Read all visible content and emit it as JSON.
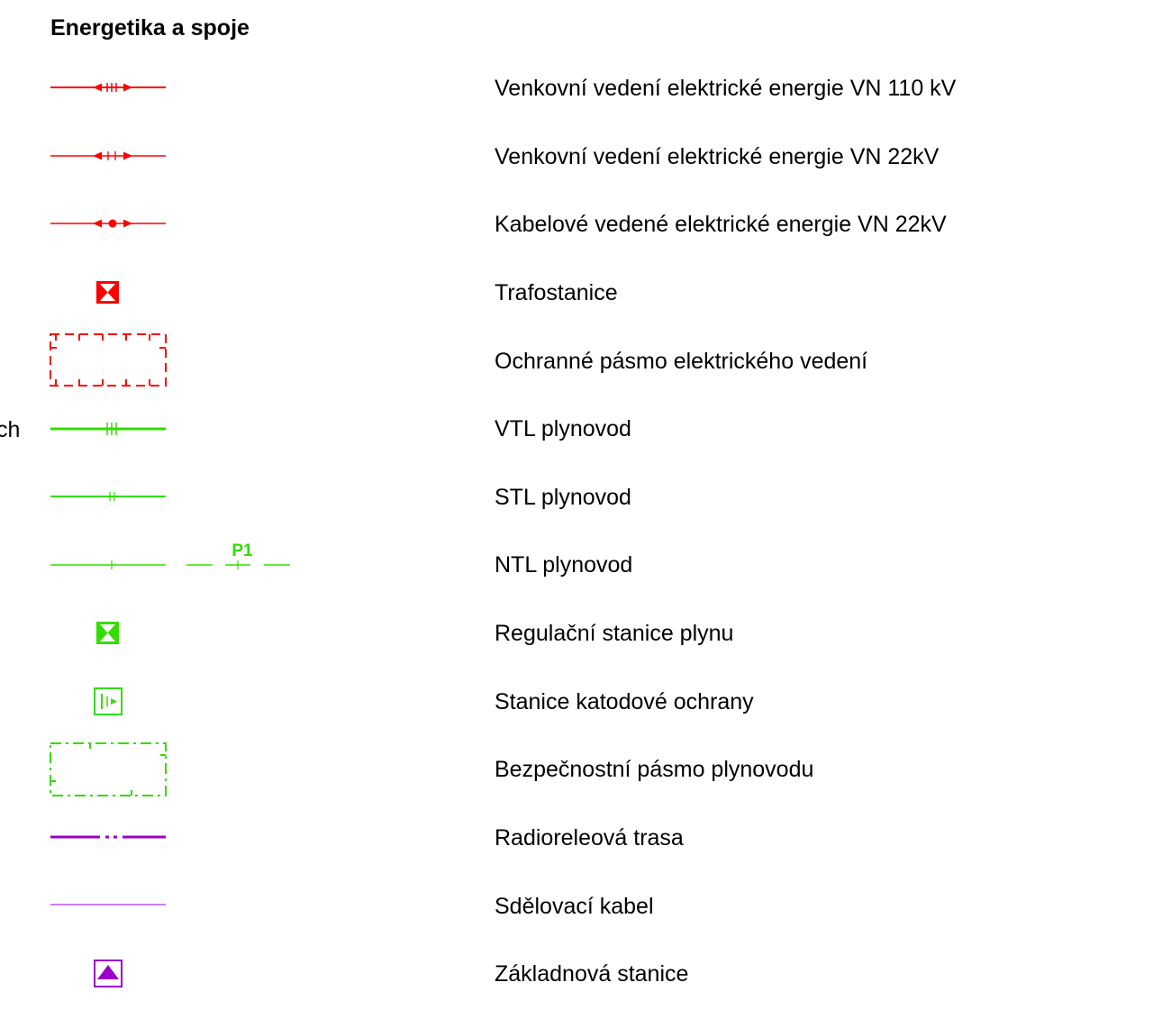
{
  "section": {
    "title": "Energetika a spoje",
    "cut_text": "ch"
  },
  "colors": {
    "electric": "#ff0000",
    "gas": "#33dd00",
    "telecom": "#9900cc",
    "telecom_light": "#bb55ee"
  },
  "legend": {
    "items": [
      {
        "label": "Venkovní vedení elektrické energie VN 110 kV",
        "symbol": "red-line-arrows-triple-tick-icon"
      },
      {
        "label": "Venkovní vedení elektrické energie VN 22kV",
        "symbol": "red-line-arrows-double-tick-icon"
      },
      {
        "label": "Kabelové vedené elektrické energie VN 22kV",
        "symbol": "red-line-arrows-dot-icon"
      },
      {
        "label": "Trafostanice",
        "symbol": "red-hourglass-square-icon"
      },
      {
        "label": "Ochranné pásmo elektrického vedení",
        "symbol": "red-dashed-rectangle-icon"
      },
      {
        "label": "VTL plynovod",
        "symbol": "green-line-triple-tick-icon"
      },
      {
        "label": "STL plynovod",
        "symbol": "green-line-double-tick-icon"
      },
      {
        "label": "NTL plynovod",
        "symbol": "green-line-single-tick-icon",
        "extra_label": "P1"
      },
      {
        "label": "Regulační stanice plynu",
        "symbol": "green-hourglass-square-icon"
      },
      {
        "label": "Stanice katodové ochrany",
        "symbol": "green-cathodic-station-icon"
      },
      {
        "label": "Bezpečnostní pásmo plynovodu",
        "symbol": "green-dashdot-rectangle-icon"
      },
      {
        "label": "Radioreleová trasa",
        "symbol": "purple-dashdot-line-icon"
      },
      {
        "label": "Sdělovací kabel",
        "symbol": "purple-thin-line-icon"
      },
      {
        "label": "Základnová stanice",
        "symbol": "purple-base-station-icon"
      }
    ]
  }
}
